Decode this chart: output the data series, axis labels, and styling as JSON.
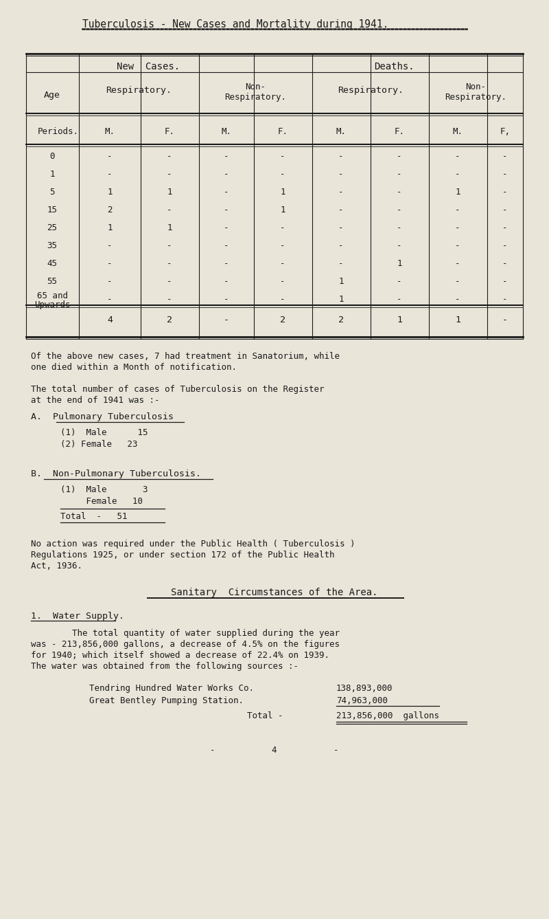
{
  "bg_color": "#e9e5d9",
  "text_color": "#1a1a1a",
  "title": "Tuberculosis - New Cases and Mortality during 1941.",
  "age_rows": [
    "0",
    "1",
    "5",
    "15",
    "25",
    "35",
    "45",
    "55",
    "65 and\nUpwards"
  ],
  "table_data": [
    [
      "-",
      "-",
      "-",
      "-",
      "-",
      "-",
      "-",
      "-"
    ],
    [
      "-",
      "-",
      "-",
      "-",
      "-",
      "-",
      "-",
      "-"
    ],
    [
      "1",
      "1",
      "-",
      "1",
      "-",
      "-",
      "1",
      "-"
    ],
    [
      "2",
      "-",
      "-",
      "1",
      "-",
      "-",
      "-",
      "-"
    ],
    [
      "1",
      "1",
      "-",
      "-",
      "-",
      "-",
      "-",
      "-"
    ],
    [
      "-",
      "-",
      "-",
      "-",
      "-",
      "-",
      "-",
      "-"
    ],
    [
      "-",
      "-",
      "-",
      "-",
      "-",
      "1",
      "-",
      "-"
    ],
    [
      "-",
      "-",
      "-",
      "-",
      "1",
      "-",
      "-",
      "-"
    ],
    [
      "-",
      "-",
      "-",
      "-",
      "1",
      "-",
      "-",
      "-"
    ]
  ],
  "totals_row": [
    "4",
    "2",
    "-",
    "2",
    "2",
    "1",
    "1",
    "-"
  ],
  "para1_line1": "Of the above new cases, 7 had treatment in Sanatorium, while",
  "para1_line2": "one died within a Month of notification.",
  "para2_line1": "The total number of cases of Tuberculosis on the Register",
  "para2_line2": "at the end of 1941 was :-",
  "section_a_title": "A.  Pulmonary Tuberculosis",
  "section_a_underline_start": "Pulmonary",
  "section_a_line1": "(1)  Male      15",
  "section_a_line2": "(2) Female   23",
  "section_b_title": "B.  Non-Pulmonary Tuberculosis.",
  "section_b_line1": "(1)  Male       3",
  "section_b_line2": "     Female   10",
  "total_label": "Total  -   51",
  "para3_line1": "No action was required under the Public Health ( Tuberculosis )",
  "para3_line2": "Regulations 1925, or under section 172 of the Public Health",
  "para3_line3": "Act, 1936.",
  "section2_title": "Sanitary  Circumstances of the Area.",
  "water_section": "1.  Water Supply.",
  "water_para_line1": "        The total quantity of water supplied during the year",
  "water_para_line2": "was - 213,856,000 gallons, a decrease of 4.5% on the figures",
  "water_para_line3": "for 1940; which itself showed a decrease of 22.4% on 1939.",
  "water_para_line4": "The water was obtained from the following sources :-",
  "ws1_label": "  Tendring Hundred Water Works Co.",
  "ws1_val": "138,893,000",
  "ws2_label": "  Great Bentley Pumping Station.",
  "ws2_val": "74,963,000",
  "wtotal_label": "Total -",
  "wtotal_val": "213,856,000  gallons",
  "footer": "-           4           -"
}
